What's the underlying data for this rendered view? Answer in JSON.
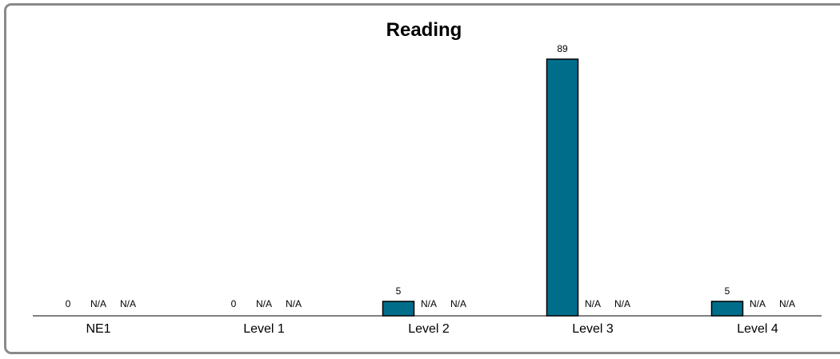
{
  "chart_data": {
    "type": "bar",
    "title": "Reading",
    "xlabel": "",
    "ylabel": "",
    "categories": [
      "NE1",
      "Level 1",
      "Level 2",
      "Level 3",
      "Level 4"
    ],
    "series": [
      {
        "values": [
          0,
          0,
          5,
          89,
          5
        ],
        "labels": [
          "0",
          "0",
          "5",
          "89",
          "5"
        ]
      },
      {
        "values": [
          null,
          null,
          null,
          null,
          null
        ],
        "labels": [
          "N/A",
          "N/A",
          "N/A",
          "N/A",
          "N/A"
        ]
      },
      {
        "values": [
          null,
          null,
          null,
          null,
          null
        ],
        "labels": [
          "N/A",
          "N/A",
          "N/A",
          "N/A",
          "N/A"
        ]
      }
    ],
    "ylim": [
      0,
      89
    ],
    "grid": false,
    "legend": "none",
    "colors": {
      "bar": "#006d8a",
      "bar_stroke": "#000000",
      "axis": "#000000",
      "border": "#8a8a8a"
    }
  }
}
